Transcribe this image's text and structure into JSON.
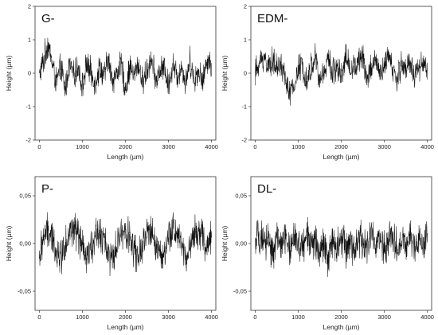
{
  "chart_data": [
    {
      "type": "line",
      "panel_label": "G-",
      "xlabel": "Length (µm)",
      "ylabel": "Height (µm)",
      "xlim": [
        -100,
        4100
      ],
      "ylim": [
        -2,
        2
      ],
      "x_ticks": [
        0,
        1000,
        2000,
        3000,
        4000
      ],
      "y_ticks": [
        -2,
        -1,
        0,
        1,
        2
      ],
      "y_tick_labels": [
        "-2",
        "-1",
        "0",
        "1",
        "2"
      ],
      "series": [
        {
          "x": [
            0,
            100,
            200,
            300,
            400,
            500,
            600,
            700,
            800,
            900,
            1000,
            1100,
            1200,
            1300,
            1400,
            1500,
            1600,
            1700,
            1800,
            1900,
            2000,
            2100,
            2200,
            2300,
            2400,
            2500,
            2600,
            2700,
            2800,
            2900,
            3000,
            3100,
            3200,
            3300,
            3400,
            3500,
            3600,
            3700,
            3800,
            3900,
            4000
          ],
          "values": [
            -0.1,
            0.4,
            0.9,
            0.3,
            -0.3,
            0.2,
            -0.5,
            0.3,
            -0.1,
            0.2,
            -0.4,
            0.3,
            0,
            -0.3,
            0.2,
            -0.1,
            0.4,
            -0.2,
            0,
            0.3,
            -0.5,
            0.2,
            -0.1,
            0.3,
            -0.3,
            0.1,
            0.4,
            -0.2,
            0,
            0.2,
            -0.4,
            0.3,
            -0.1,
            0.2,
            -0.3,
            0.4,
            -0.2,
            0.1,
            -0.3,
            0.5,
            0.1
          ]
        }
      ]
    },
    {
      "type": "line",
      "panel_label": "EDM-",
      "xlabel": "Length (µm)",
      "ylabel": "Height (µm)",
      "xlim": [
        -100,
        4100
      ],
      "ylim": [
        -2,
        2
      ],
      "x_ticks": [
        0,
        1000,
        2000,
        3000,
        4000
      ],
      "y_ticks": [
        -2,
        -1,
        0,
        1,
        2
      ],
      "y_tick_labels": [
        "-2",
        "-1",
        "0",
        "1",
        "2"
      ],
      "series": [
        {
          "x": [
            0,
            100,
            200,
            300,
            400,
            500,
            600,
            700,
            800,
            900,
            1000,
            1100,
            1200,
            1300,
            1400,
            1500,
            1600,
            1700,
            1800,
            1900,
            2000,
            2100,
            2200,
            2300,
            2400,
            2500,
            2600,
            2700,
            2800,
            2900,
            3000,
            3100,
            3200,
            3300,
            3400,
            3500,
            3600,
            3700,
            3800,
            3900,
            4000
          ],
          "values": [
            0,
            0.3,
            0.5,
            0.2,
            0.4,
            0.1,
            0.3,
            -0.2,
            -0.6,
            -0.4,
            0.1,
            0.3,
            -0.2,
            0.2,
            0.5,
            -0.3,
            0.1,
            0.4,
            0,
            0.3,
            -0.1,
            0.5,
            0.2,
            0.1,
            0.3,
            0.6,
            -0.2,
            0.2,
            0.4,
            -0.1,
            0.2,
            0.5,
            0.1,
            -0.2,
            0.3,
            0.1,
            0.4,
            -0.1,
            0.2,
            0.3,
            0.1
          ]
        }
      ]
    },
    {
      "type": "line",
      "panel_label": "P-",
      "xlabel": "Length (µm)",
      "ylabel": "Height (µm)",
      "xlim": [
        -100,
        4100
      ],
      "ylim": [
        -0.07,
        0.07
      ],
      "x_ticks": [
        0,
        1000,
        2000,
        3000,
        4000
      ],
      "y_ticks": [
        -0.05,
        0,
        0.05
      ],
      "y_tick_labels": [
        "-0,05",
        "0,00",
        "0,05"
      ],
      "series": [
        {
          "x": [
            0,
            100,
            200,
            300,
            400,
            500,
            600,
            700,
            800,
            900,
            1000,
            1100,
            1200,
            1300,
            1400,
            1500,
            1600,
            1700,
            1800,
            1900,
            2000,
            2100,
            2200,
            2300,
            2400,
            2500,
            2600,
            2700,
            2800,
            2900,
            3000,
            3100,
            3200,
            3300,
            3400,
            3500,
            3600,
            3700,
            3800,
            3900,
            4000
          ],
          "values": [
            -0.015,
            0.008,
            0.012,
            0.004,
            -0.008,
            -0.014,
            0.002,
            0.012,
            0.016,
            0.008,
            -0.006,
            -0.018,
            -0.006,
            0.01,
            0.014,
            0.004,
            -0.01,
            -0.02,
            -0.004,
            0.01,
            0.015,
            0.006,
            -0.008,
            -0.016,
            -0.004,
            0.01,
            0.012,
            0.002,
            -0.01,
            -0.016,
            0.004,
            0.016,
            0.012,
            0,
            -0.012,
            -0.006,
            0.01,
            0.014,
            0.004,
            -0.006,
            0.008
          ]
        }
      ]
    },
    {
      "type": "line",
      "panel_label": "DL-",
      "xlabel": "Length (µm)",
      "ylabel": "Height (µm)",
      "xlim": [
        -100,
        4100
      ],
      "ylim": [
        -0.07,
        0.07
      ],
      "x_ticks": [
        0,
        1000,
        2000,
        3000,
        4000
      ],
      "y_ticks": [
        -0.05,
        0,
        0.05
      ],
      "y_tick_labels": [
        "-0,05",
        "0,00",
        "0,05"
      ],
      "series": [
        {
          "x": [
            0,
            100,
            200,
            300,
            400,
            500,
            600,
            700,
            800,
            900,
            1000,
            1100,
            1200,
            1300,
            1400,
            1500,
            1600,
            1700,
            1800,
            1900,
            2000,
            2100,
            2200,
            2300,
            2400,
            2500,
            2600,
            2700,
            2800,
            2900,
            3000,
            3100,
            3200,
            3300,
            3400,
            3500,
            3600,
            3700,
            3800,
            3900,
            4000
          ],
          "values": [
            0,
            0.01,
            -0.006,
            0.008,
            -0.01,
            0.006,
            -0.004,
            0.01,
            -0.008,
            0.004,
            0.002,
            -0.008,
            0.01,
            -0.004,
            0.006,
            -0.01,
            0.004,
            -0.02,
            0.008,
            -0.004,
            0.01,
            -0.006,
            0.004,
            -0.008,
            0.006,
            0.002,
            -0.006,
            0.01,
            -0.004,
            0.006,
            -0.008,
            0.004,
            0.008,
            -0.006,
            0.004,
            -0.004,
            0.008,
            -0.006,
            0.004,
            -0.002,
            0.004
          ]
        }
      ]
    }
  ]
}
